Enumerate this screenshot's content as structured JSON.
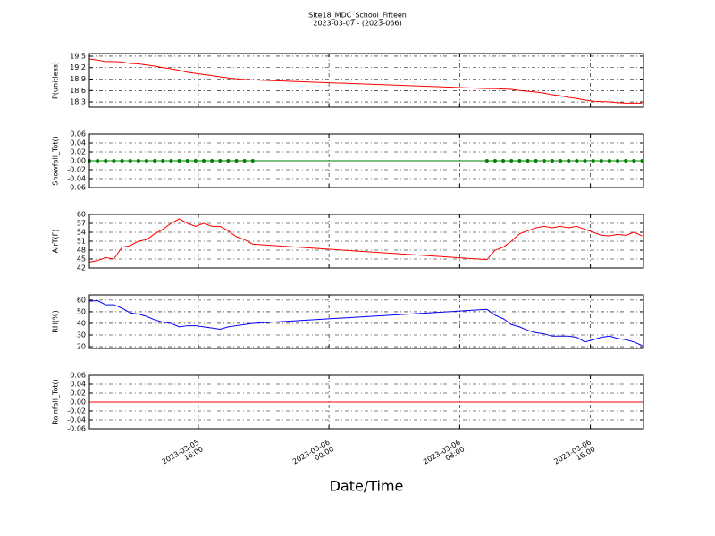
{
  "chart_data": [
    {
      "type": "line",
      "title": "Site18_MDC_School_Fifteen",
      "subtitle": "2023-03-07 - (2023-066)",
      "y_label": "P(unitless)",
      "x": [
        "2023-03-05 09:20",
        "2023-03-05 09:50",
        "2023-03-05 10:20",
        "2023-03-05 10:50",
        "2023-03-05 11:20",
        "2023-03-05 11:50",
        "2023-03-05 12:20",
        "2023-03-05 12:50",
        "2023-03-05 13:20",
        "2023-03-05 13:50",
        "2023-03-05 14:20",
        "2023-03-05 14:50",
        "2023-03-05 15:20",
        "2023-03-05 15:50",
        "2023-03-05 16:20",
        "2023-03-05 16:50",
        "2023-03-05 17:20",
        "2023-03-05 17:50",
        "2023-03-05 18:20",
        "2023-03-05 18:50",
        "2023-03-05 19:20",
        "2023-03-06 09:40",
        "2023-03-06 10:10",
        "2023-03-06 10:40",
        "2023-03-06 11:10",
        "2023-03-06 11:40",
        "2023-03-06 12:10",
        "2023-03-06 12:40",
        "2023-03-06 13:10",
        "2023-03-06 13:40",
        "2023-03-06 14:10",
        "2023-03-06 14:40",
        "2023-03-06 15:10",
        "2023-03-06 15:40",
        "2023-03-06 16:10",
        "2023-03-06 16:40",
        "2023-03-06 17:10",
        "2023-03-06 17:40",
        "2023-03-06 18:10",
        "2023-03-06 18:40",
        "2023-03-06 19:10"
      ],
      "series": [
        {
          "color": "#ff0000",
          "values": [
            19.43,
            19.4,
            19.36,
            19.36,
            19.35,
            19.31,
            19.3,
            19.27,
            19.24,
            19.2,
            19.17,
            19.13,
            19.08,
            19.05,
            19.02,
            18.99,
            18.96,
            18.93,
            18.91,
            18.89,
            18.88,
            18.65,
            18.65,
            18.64,
            18.63,
            18.6,
            18.58,
            18.56,
            18.53,
            18.49,
            18.46,
            18.42,
            18.39,
            18.35,
            18.32,
            18.31,
            18.3,
            18.28,
            18.27,
            18.27,
            18.27
          ]
        }
      ],
      "xlim": [
        "2023-03-05 09:20",
        "2023-03-06 19:15"
      ],
      "xticks": [
        "2023-03-05 16:00",
        "2023-03-06 00:00",
        "2023-03-06 08:00",
        "2023-03-06 16:00"
      ],
      "ylim": [
        18.16,
        19.57
      ],
      "yticks": [
        18.3,
        18.6,
        18.9,
        19.2,
        19.5
      ],
      "grid": true
    },
    {
      "type": "line",
      "y_label": "Snowfall_Tot()",
      "x": [
        "2023-03-05 09:20",
        "2023-03-05 09:50",
        "2023-03-05 10:20",
        "2023-03-05 10:50",
        "2023-03-05 11:20",
        "2023-03-05 11:50",
        "2023-03-05 12:20",
        "2023-03-05 12:50",
        "2023-03-05 13:20",
        "2023-03-05 13:50",
        "2023-03-05 14:20",
        "2023-03-05 14:50",
        "2023-03-05 15:20",
        "2023-03-05 15:50",
        "2023-03-05 16:20",
        "2023-03-05 16:50",
        "2023-03-05 17:20",
        "2023-03-05 17:50",
        "2023-03-05 18:20",
        "2023-03-05 18:50",
        "2023-03-05 19:20",
        "2023-03-06 09:40",
        "2023-03-06 10:10",
        "2023-03-06 10:40",
        "2023-03-06 11:10",
        "2023-03-06 11:40",
        "2023-03-06 12:10",
        "2023-03-06 12:40",
        "2023-03-06 13:10",
        "2023-03-06 13:40",
        "2023-03-06 14:10",
        "2023-03-06 14:40",
        "2023-03-06 15:10",
        "2023-03-06 15:40",
        "2023-03-06 16:10",
        "2023-03-06 16:40",
        "2023-03-06 17:10",
        "2023-03-06 17:40",
        "2023-03-06 18:10",
        "2023-03-06 18:40",
        "2023-03-06 19:10"
      ],
      "series": [
        {
          "color": "#008000",
          "marker": "o",
          "values": [
            0,
            0,
            0,
            0,
            0,
            0,
            0,
            0,
            0,
            0,
            0,
            0,
            0,
            0,
            0,
            0,
            0,
            0,
            0,
            0,
            0,
            0,
            0,
            0,
            0,
            0,
            0,
            0,
            0,
            0,
            0,
            0,
            0,
            0,
            0,
            0,
            0,
            0,
            0,
            0,
            0
          ]
        }
      ],
      "xlim": [
        "2023-03-05 09:20",
        "2023-03-06 19:15"
      ],
      "xticks": [
        "2023-03-05 16:00",
        "2023-03-06 00:00",
        "2023-03-06 08:00",
        "2023-03-06 16:00"
      ],
      "ylim": [
        -0.06,
        0.06
      ],
      "yticks": [
        -0.06,
        -0.04,
        -0.02,
        {
          "value": 0,
          "label": "0.00"
        },
        0.02,
        0.04,
        0.06
      ],
      "grid": true
    },
    {
      "type": "line",
      "y_label": "AirT(F)",
      "x": [
        "2023-03-05 09:20",
        "2023-03-05 09:50",
        "2023-03-05 10:20",
        "2023-03-05 10:50",
        "2023-03-05 11:20",
        "2023-03-05 11:50",
        "2023-03-05 12:20",
        "2023-03-05 12:50",
        "2023-03-05 13:20",
        "2023-03-05 13:50",
        "2023-03-05 14:20",
        "2023-03-05 14:50",
        "2023-03-05 15:20",
        "2023-03-05 15:50",
        "2023-03-05 16:20",
        "2023-03-05 16:50",
        "2023-03-05 17:20",
        "2023-03-05 17:50",
        "2023-03-05 18:20",
        "2023-03-05 18:50",
        "2023-03-05 19:20",
        "2023-03-06 09:40",
        "2023-03-06 10:10",
        "2023-03-06 10:40",
        "2023-03-06 11:10",
        "2023-03-06 11:40",
        "2023-03-06 12:10",
        "2023-03-06 12:40",
        "2023-03-06 13:10",
        "2023-03-06 13:40",
        "2023-03-06 14:10",
        "2023-03-06 14:40",
        "2023-03-06 15:10",
        "2023-03-06 15:40",
        "2023-03-06 16:10",
        "2023-03-06 16:40",
        "2023-03-06 17:10",
        "2023-03-06 17:40",
        "2023-03-06 18:10",
        "2023-03-06 18:40",
        "2023-03-06 19:10"
      ],
      "series": [
        {
          "color": "#ff0000",
          "values": [
            44,
            44.5,
            45.5,
            45,
            49,
            49.5,
            51,
            51.5,
            53.5,
            55,
            57,
            58.5,
            57,
            56,
            57,
            56,
            56,
            54.5,
            52.5,
            51.5,
            50,
            44.8,
            48,
            49,
            51,
            53.5,
            54.5,
            55.5,
            56,
            55.5,
            56,
            55.5,
            56,
            55,
            54,
            53,
            52.8,
            53.3,
            53,
            54,
            52.8
          ]
        }
      ],
      "xlim": [
        "2023-03-05 09:20",
        "2023-03-06 19:15"
      ],
      "xticks": [
        "2023-03-05 16:00",
        "2023-03-06 00:00",
        "2023-03-06 08:00",
        "2023-03-06 16:00"
      ],
      "ylim": [
        42,
        60
      ],
      "yticks": [
        42,
        45,
        48,
        51,
        54,
        57,
        60
      ],
      "grid": true
    },
    {
      "type": "line",
      "y_label": "RH(%)",
      "x": [
        "2023-03-05 09:20",
        "2023-03-05 09:50",
        "2023-03-05 10:20",
        "2023-03-05 10:50",
        "2023-03-05 11:20",
        "2023-03-05 11:50",
        "2023-03-05 12:20",
        "2023-03-05 12:50",
        "2023-03-05 13:20",
        "2023-03-05 13:50",
        "2023-03-05 14:20",
        "2023-03-05 14:50",
        "2023-03-05 15:20",
        "2023-03-05 15:50",
        "2023-03-05 16:20",
        "2023-03-05 16:50",
        "2023-03-05 17:20",
        "2023-03-05 17:50",
        "2023-03-05 18:20",
        "2023-03-05 18:50",
        "2023-03-05 19:20",
        "2023-03-06 09:40",
        "2023-03-06 10:10",
        "2023-03-06 10:40",
        "2023-03-06 11:10",
        "2023-03-06 11:40",
        "2023-03-06 12:10",
        "2023-03-06 12:40",
        "2023-03-06 13:10",
        "2023-03-06 13:40",
        "2023-03-06 14:10",
        "2023-03-06 14:40",
        "2023-03-06 15:10",
        "2023-03-06 15:40",
        "2023-03-06 16:10",
        "2023-03-06 16:40",
        "2023-03-06 17:10",
        "2023-03-06 17:40",
        "2023-03-06 18:10",
        "2023-03-06 18:40",
        "2023-03-06 19:10"
      ],
      "series": [
        {
          "color": "#0000ff",
          "values": [
            59,
            59.5,
            56,
            56,
            53,
            49,
            48,
            46,
            43,
            41,
            40,
            37,
            38,
            38,
            37,
            36,
            35,
            37,
            38,
            39,
            40,
            52,
            47,
            44,
            39,
            37,
            34,
            32,
            31,
            29,
            29,
            29,
            28,
            24,
            26,
            28,
            29,
            27,
            26,
            24,
            21
          ]
        }
      ],
      "xlim": [
        "2023-03-05 09:20",
        "2023-03-06 19:15"
      ],
      "xticks": [
        "2023-03-05 16:00",
        "2023-03-06 00:00",
        "2023-03-06 08:00",
        "2023-03-06 16:00"
      ],
      "ylim": [
        18.5,
        64.5
      ],
      "yticks": [
        20,
        30,
        40,
        50,
        60
      ],
      "grid": true
    },
    {
      "type": "line",
      "y_label": "Rainfall_Tot()",
      "x_label": "Date/Time",
      "x": [
        "2023-03-05 09:20",
        "2023-03-05 09:50",
        "2023-03-05 10:20",
        "2023-03-05 10:50",
        "2023-03-05 11:20",
        "2023-03-05 11:50",
        "2023-03-05 12:20",
        "2023-03-05 12:50",
        "2023-03-05 13:20",
        "2023-03-05 13:50",
        "2023-03-05 14:20",
        "2023-03-05 14:50",
        "2023-03-05 15:20",
        "2023-03-05 15:50",
        "2023-03-05 16:20",
        "2023-03-05 16:50",
        "2023-03-05 17:20",
        "2023-03-05 17:50",
        "2023-03-05 18:20",
        "2023-03-05 18:50",
        "2023-03-05 19:20",
        "2023-03-06 09:40",
        "2023-03-06 10:10",
        "2023-03-06 10:40",
        "2023-03-06 11:10",
        "2023-03-06 11:40",
        "2023-03-06 12:10",
        "2023-03-06 12:40",
        "2023-03-06 13:10",
        "2023-03-06 13:40",
        "2023-03-06 14:10",
        "2023-03-06 14:40",
        "2023-03-06 15:10",
        "2023-03-06 15:40",
        "2023-03-06 16:10",
        "2023-03-06 16:40",
        "2023-03-06 17:10",
        "2023-03-06 17:40",
        "2023-03-06 18:10",
        "2023-03-06 18:40",
        "2023-03-06 19:10"
      ],
      "series": [
        {
          "color": "#ff0000",
          "values": [
            0,
            0,
            0,
            0,
            0,
            0,
            0,
            0,
            0,
            0,
            0,
            0,
            0,
            0,
            0,
            0,
            0,
            0,
            0,
            0,
            0,
            0,
            0,
            0,
            0,
            0,
            0,
            0,
            0,
            0,
            0,
            0,
            0,
            0,
            0,
            0,
            0,
            0,
            0,
            0,
            0
          ]
        }
      ],
      "xlim": [
        "2023-03-05 09:20",
        "2023-03-06 19:15"
      ],
      "xticks": [
        "2023-03-05 16:00",
        "2023-03-06 00:00",
        "2023-03-06 08:00",
        "2023-03-06 16:00"
      ],
      "ylim": [
        -0.06,
        0.06
      ],
      "yticks": [
        -0.06,
        -0.04,
        -0.02,
        {
          "value": 0,
          "label": "0.00"
        },
        0.02,
        0.04,
        0.06
      ],
      "grid": true
    }
  ]
}
